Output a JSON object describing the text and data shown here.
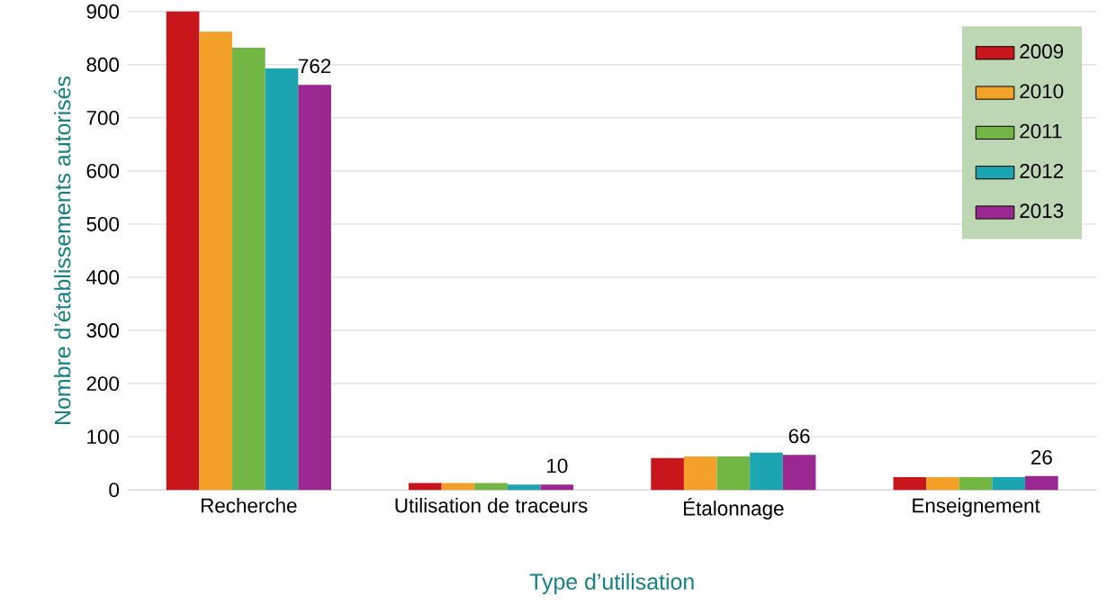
{
  "chart_data": {
    "type": "bar",
    "xlabel": "Type d’utilisation",
    "ylabel": "Nombre d’établissements autorisés",
    "categories": [
      "Recherche",
      "Utilisation de traceurs",
      "Étalonnage",
      "Enseignement"
    ],
    "series": [
      {
        "name": "2009",
        "color": "#c8161d",
        "values": [
          900,
          13,
          60,
          24
        ]
      },
      {
        "name": "2010",
        "color": "#f4a12a",
        "values": [
          862,
          13,
          63,
          24
        ]
      },
      {
        "name": "2011",
        "color": "#72b744",
        "values": [
          832,
          13,
          63,
          24
        ]
      },
      {
        "name": "2012",
        "color": "#1ca5b0",
        "values": [
          793,
          10,
          70,
          24
        ]
      },
      {
        "name": "2013",
        "color": "#9b2890",
        "values": [
          762,
          10,
          66,
          26
        ],
        "value_labels": [
          "762",
          "10",
          "66",
          "26"
        ]
      }
    ],
    "ylim": [
      0,
      900
    ],
    "yticks": [
      0,
      100,
      200,
      300,
      400,
      500,
      600,
      700,
      800,
      900
    ],
    "grid": "y",
    "legend": "top right"
  }
}
